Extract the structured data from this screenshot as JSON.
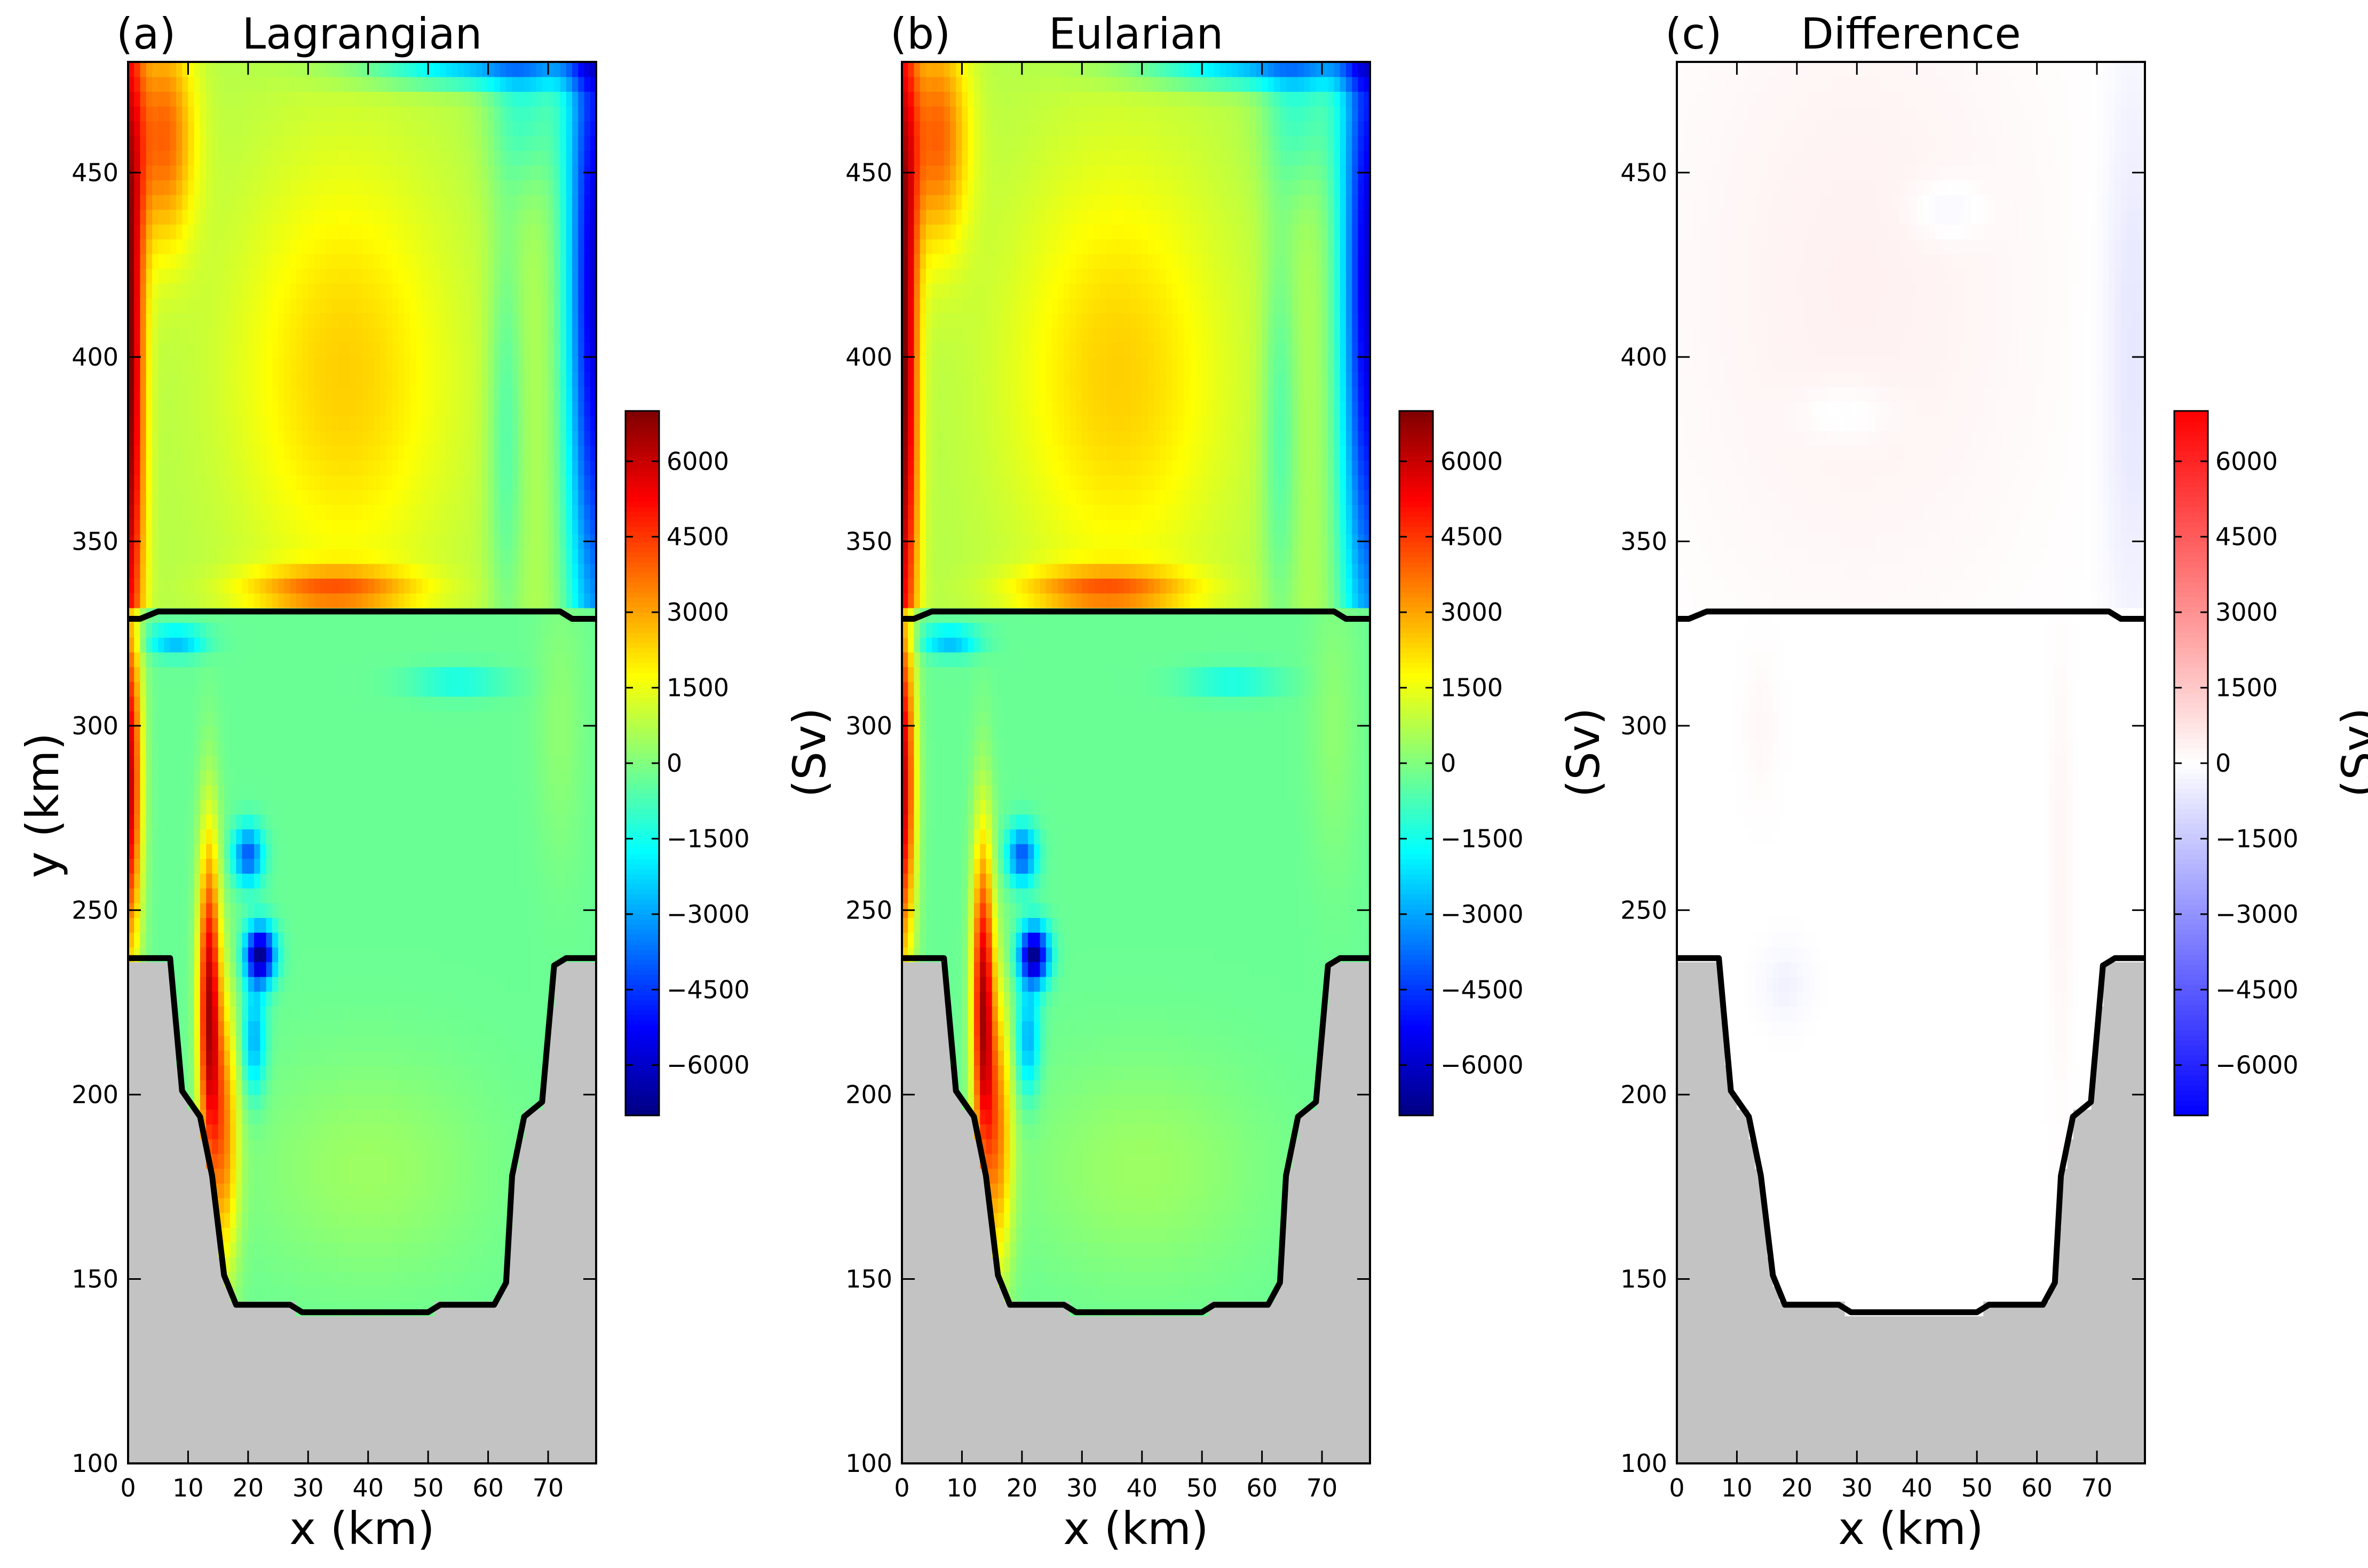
{
  "chart_data": [
    {
      "type": "heatmap",
      "panel": "(a)",
      "title": "Lagrangian",
      "xlabel": "x (km)",
      "ylabel": "y (km)",
      "xlim": [
        0,
        78
      ],
      "ylim": [
        100,
        480
      ],
      "xticks": [
        0,
        10,
        20,
        30,
        40,
        50,
        60,
        70
      ],
      "yticks": [
        100,
        150,
        200,
        250,
        300,
        350,
        400,
        450
      ],
      "colormap": "jet",
      "colorbar": {
        "label": "(Sv)",
        "range": [
          -7000,
          7000
        ],
        "ticks": [
          6000,
          4500,
          3000,
          1500,
          0,
          -1500,
          -3000,
          -4500,
          -6000
        ]
      },
      "mask_color": "#c3c3c3",
      "section_line_y_km": 331,
      "features": [
        "positive western boundary current (up to ~7000 Sv) along x = 0-4 km",
        "negative eastern/northern boundary band (~-6000 Sv) above y = 330 km",
        "broad interior maximum ~2000-2500 Sv near x = 35 km, y = 390 km",
        "zonal positive band ~3500 Sv along y = 335 km",
        "positive jet ~6000 Sv at x = 12-16 km, y = 180-265 km with negative eddies at x = 20 km, y = 240 and 265 km"
      ]
    },
    {
      "type": "heatmap",
      "panel": "(b)",
      "title": "Eularian",
      "xlabel": "x (km)",
      "ylabel": "",
      "xlim": [
        0,
        78
      ],
      "ylim": [
        100,
        480
      ],
      "xticks": [
        0,
        10,
        20,
        30,
        40,
        50,
        60,
        70
      ],
      "yticks": [
        100,
        150,
        200,
        250,
        300,
        350,
        400,
        450
      ],
      "colormap": "jet",
      "colorbar": {
        "label": "(Sv)",
        "range": [
          -7000,
          7000
        ],
        "ticks": [
          6000,
          4500,
          3000,
          1500,
          0,
          -1500,
          -3000,
          -4500,
          -6000
        ]
      },
      "mask_color": "#c3c3c3",
      "section_line_y_km": 331
    },
    {
      "type": "heatmap",
      "panel": "(c)",
      "title": "Difference",
      "xlabel": "x (km)",
      "ylabel": "",
      "xlim": [
        0,
        78
      ],
      "ylim": [
        100,
        480
      ],
      "xticks": [
        0,
        10,
        20,
        30,
        40,
        50,
        60,
        70
      ],
      "yticks": [
        100,
        150,
        200,
        250,
        300,
        350,
        400,
        450
      ],
      "colormap": "bwr",
      "colorbar": {
        "label": "(Sv)",
        "range": [
          -7000,
          7000
        ],
        "ticks": [
          6000,
          4500,
          3000,
          1500,
          0,
          -1500,
          -3000,
          -4500,
          -6000
        ]
      },
      "mask_color": "#c3c3c3",
      "section_line_y_km": 331,
      "features": [
        "weak positive differences (~300-600 Sv) over the northern basin",
        "weak negative differences (~-800 Sv) near x = 70-78 km north of y = 330 km",
        "near-zero differences in the southern basin"
      ]
    }
  ],
  "basin_outline_km": [
    [
      0,
      237
    ],
    [
      7,
      237
    ],
    [
      9,
      201
    ],
    [
      12,
      194
    ],
    [
      14,
      178
    ],
    [
      16,
      151
    ],
    [
      18,
      143
    ],
    [
      27,
      143
    ],
    [
      29,
      141
    ],
    [
      50,
      141
    ],
    [
      52,
      143
    ],
    [
      61,
      143
    ],
    [
      63,
      149
    ],
    [
      64,
      178
    ],
    [
      66,
      194
    ],
    [
      69,
      198
    ],
    [
      71,
      235
    ],
    [
      73,
      237
    ],
    [
      78,
      237
    ]
  ],
  "section_line_km": [
    [
      0,
      329
    ],
    [
      2,
      329
    ],
    [
      5,
      331
    ],
    [
      72,
      331
    ],
    [
      74,
      329
    ],
    [
      78,
      329
    ]
  ]
}
